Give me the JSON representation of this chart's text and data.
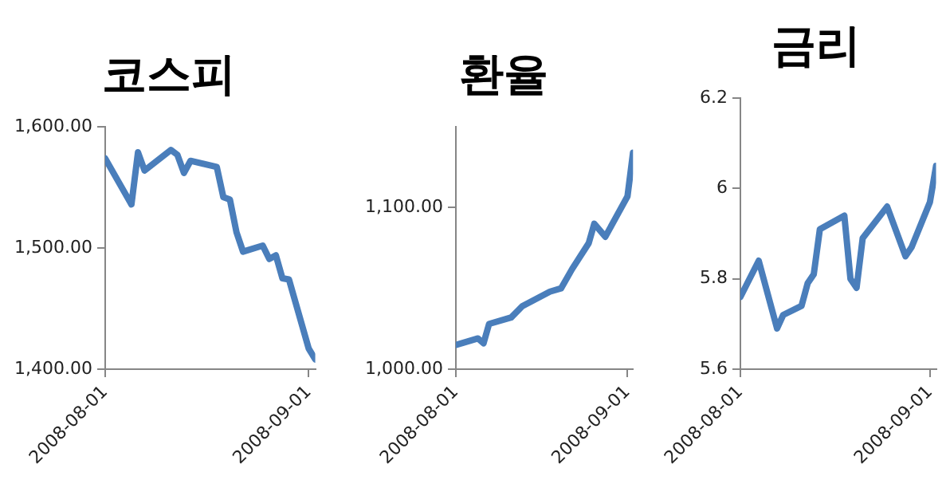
{
  "chart_data": [
    {
      "type": "line",
      "title": "코스피",
      "color": "#4a7ebb",
      "x": [
        "2008-08-01",
        "2008-08-05",
        "2008-08-06",
        "2008-08-07",
        "2008-08-11",
        "2008-08-12",
        "2008-08-13",
        "2008-08-14",
        "2008-08-18",
        "2008-08-19",
        "2008-08-20",
        "2008-08-21",
        "2008-08-22",
        "2008-08-25",
        "2008-08-26",
        "2008-08-27",
        "2008-08-28",
        "2008-08-29",
        "2008-09-01",
        "2008-09-02"
      ],
      "values": [
        1574,
        1536,
        1579,
        1564,
        1581,
        1577,
        1562,
        1572,
        1567,
        1542,
        1540,
        1513,
        1497,
        1502,
        1491,
        1494,
        1475,
        1474,
        1417,
        1408
      ],
      "xlim": [
        "2008-08-01",
        "2008-09-02"
      ],
      "xticks": [
        "2008-08-01",
        "2008-09-01"
      ],
      "ylim": [
        1400,
        1600
      ],
      "yticks": [
        {
          "value": 1400,
          "label": "1,400.00"
        },
        {
          "value": 1500,
          "label": "1,500.00"
        },
        {
          "value": 1600,
          "label": "1,600.00"
        }
      ]
    },
    {
      "type": "line",
      "title": "환율",
      "color": "#4a7ebb",
      "x": [
        "2008-08-01",
        "2008-08-05",
        "2008-08-06",
        "2008-08-07",
        "2008-08-11",
        "2008-08-13",
        "2008-08-18",
        "2008-08-20",
        "2008-08-22",
        "2008-08-25",
        "2008-08-26",
        "2008-08-28",
        "2008-09-01",
        "2008-09-02"
      ],
      "values": [
        1015,
        1019,
        1016,
        1028,
        1032,
        1039,
        1048,
        1050,
        1062,
        1078,
        1090,
        1082,
        1107,
        1134
      ],
      "xlim": [
        "2008-08-01",
        "2008-09-02"
      ],
      "xticks": [
        "2008-08-01",
        "2008-09-01"
      ],
      "ylim": [
        1000,
        1150
      ],
      "yticks": [
        {
          "value": 1000,
          "label": "1,000.00"
        },
        {
          "value": 1100,
          "label": "1,100.00"
        }
      ]
    },
    {
      "type": "line",
      "title": "금리",
      "color": "#4a7ebb",
      "x": [
        "2008-08-01",
        "2008-08-04",
        "2008-08-07",
        "2008-08-08",
        "2008-08-11",
        "2008-08-12",
        "2008-08-13",
        "2008-08-14",
        "2008-08-18",
        "2008-08-19",
        "2008-08-20",
        "2008-08-21",
        "2008-08-25",
        "2008-08-28",
        "2008-08-29",
        "2008-09-01",
        "2008-09-02"
      ],
      "values": [
        5.76,
        5.84,
        5.69,
        5.72,
        5.74,
        5.79,
        5.81,
        5.91,
        5.94,
        5.8,
        5.78,
        5.89,
        5.96,
        5.85,
        5.87,
        5.97,
        6.05
      ],
      "xlim": [
        "2008-08-01",
        "2008-09-02"
      ],
      "xticks": [
        "2008-08-01",
        "2008-09-01"
      ],
      "ylim": [
        5.6,
        6.2
      ],
      "yticks": [
        5.6,
        5.8,
        6,
        6.2
      ]
    }
  ]
}
